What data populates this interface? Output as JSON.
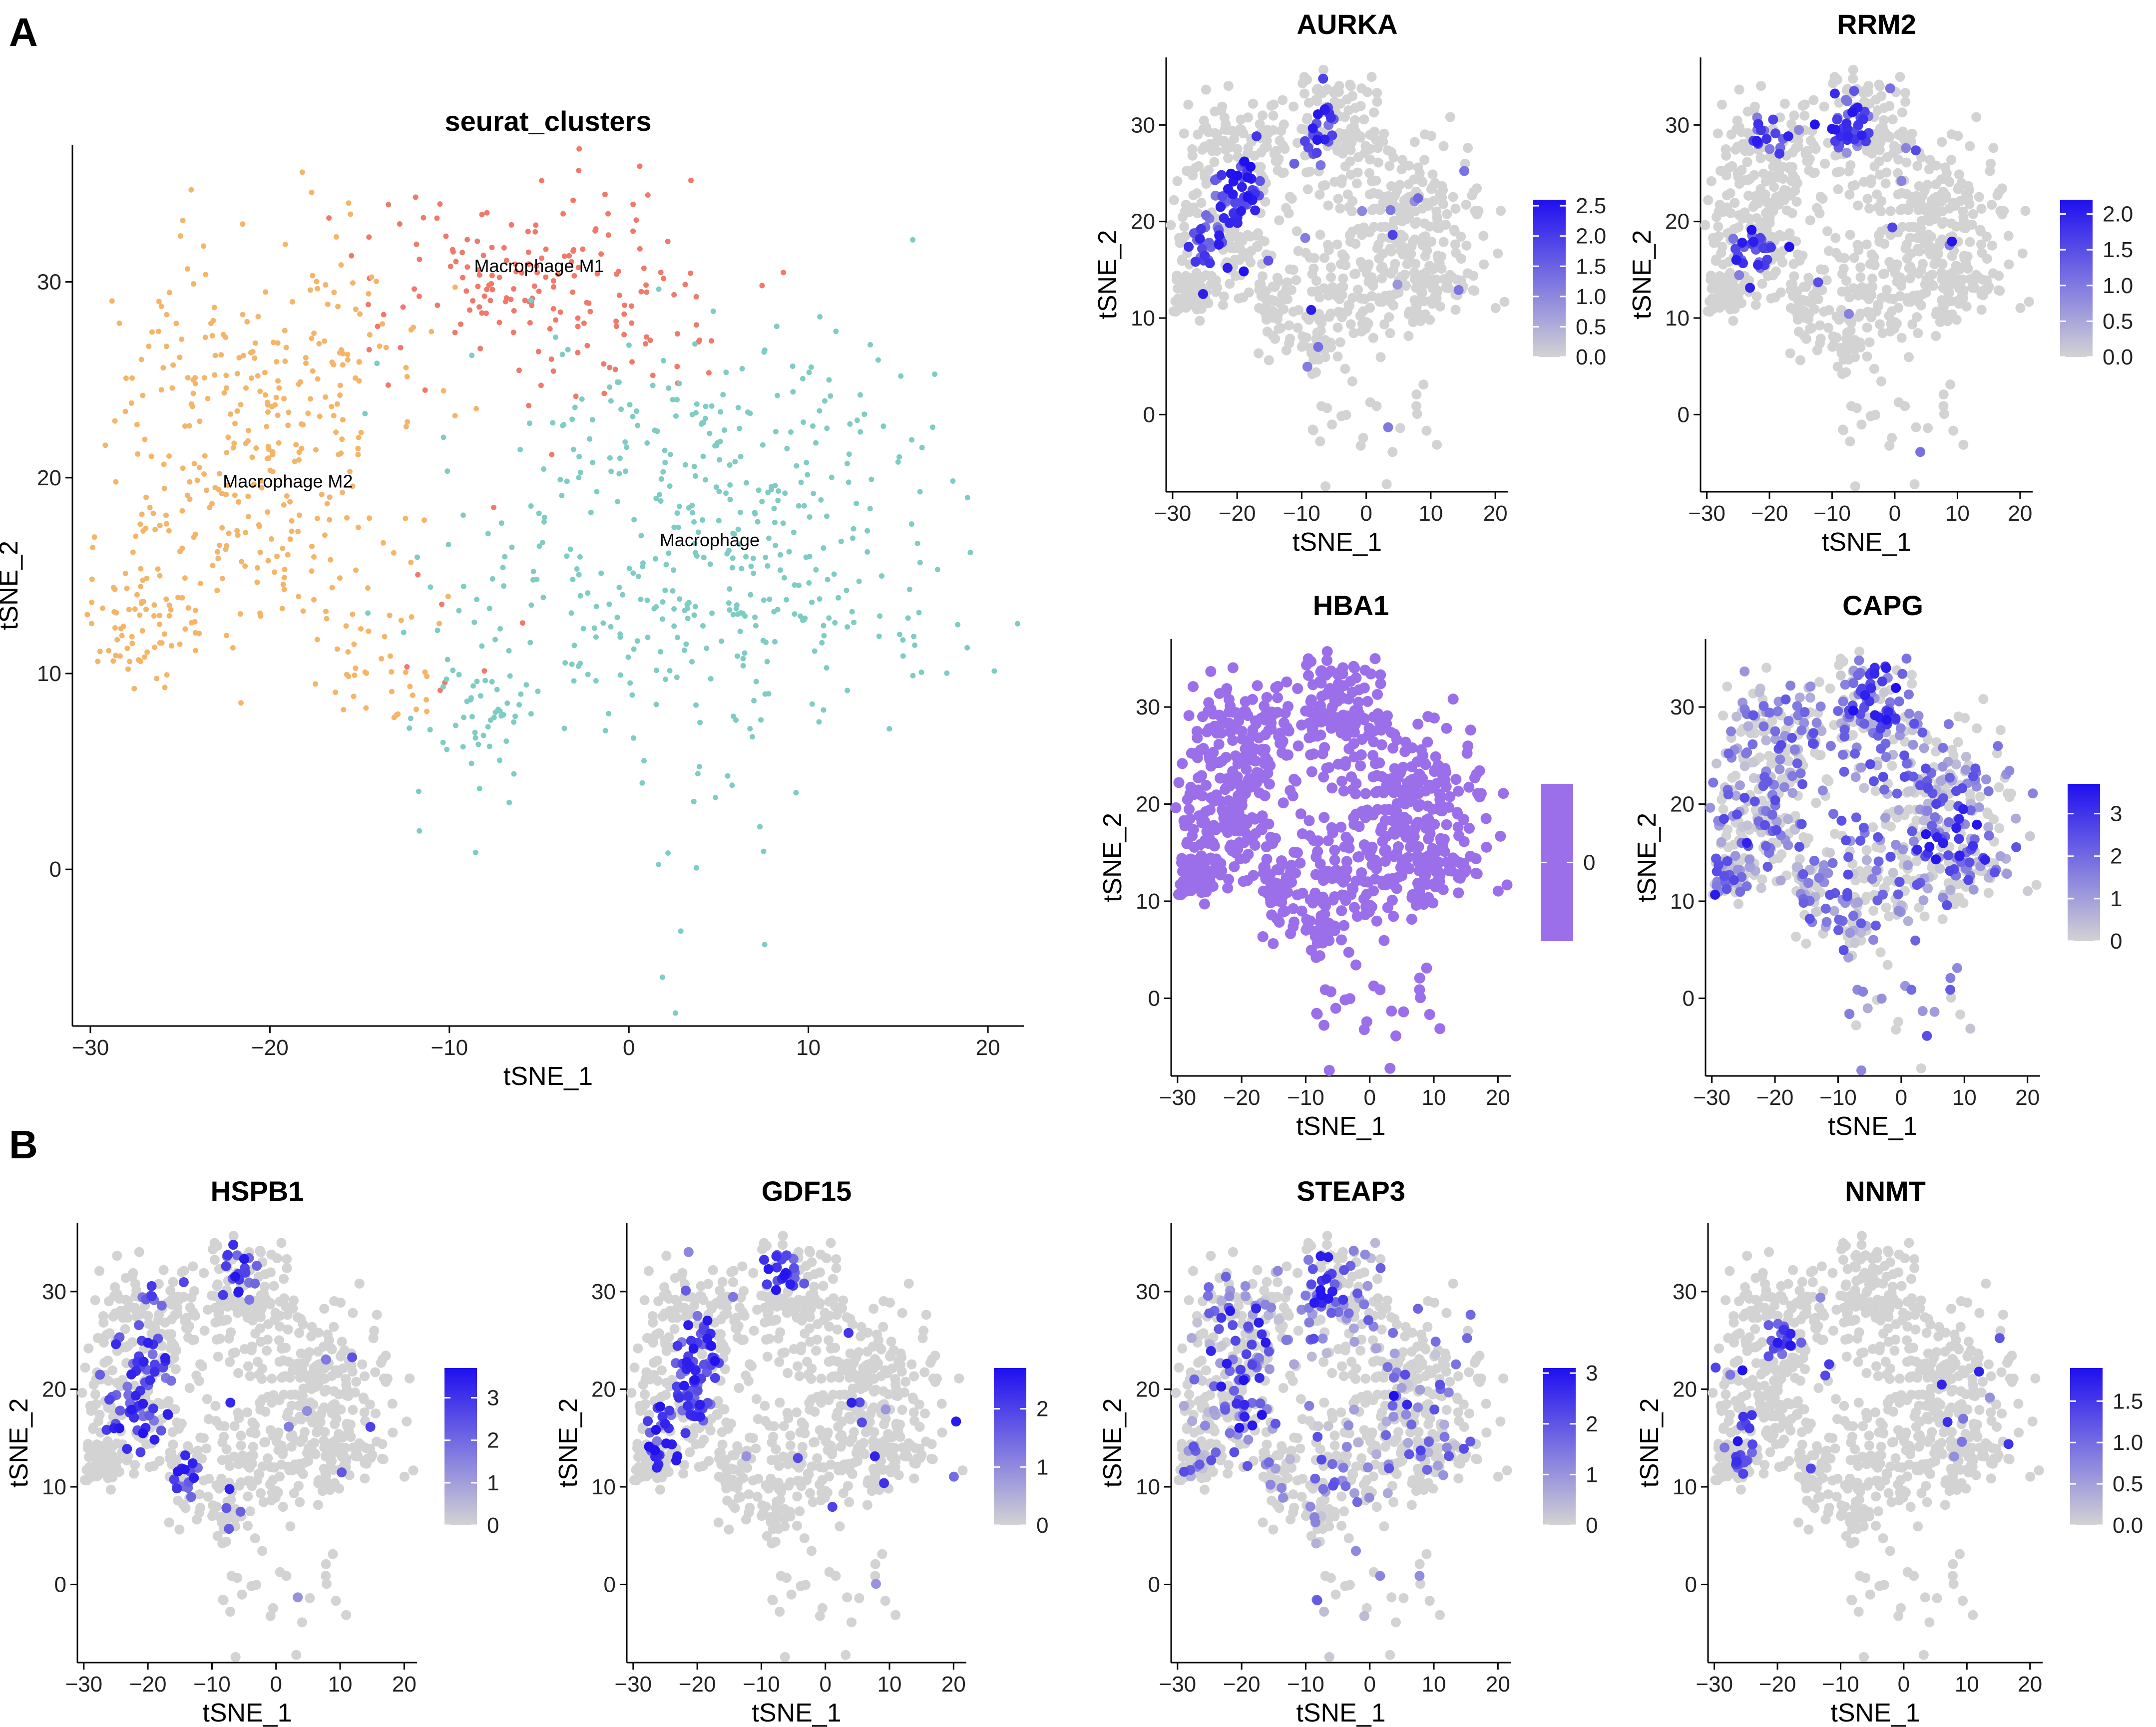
{
  "panel_labels": [
    "A",
    "B"
  ],
  "chart_data": [
    {
      "type": "scatter",
      "title": "seurat_clusters",
      "xlabel": "tSNE_1",
      "ylabel": "tSNE_2",
      "xlim": [
        -31,
        22
      ],
      "ylim": [
        -8,
        37
      ],
      "xticks": [
        -30,
        -20,
        -10,
        0,
        10,
        20
      ],
      "yticks": [
        0,
        10,
        20,
        30
      ],
      "clusters": [
        {
          "name": "Macrophage M1",
          "color": "#F0796B",
          "label_x": -5,
          "label_y": 30.5,
          "centers": [
            [
              -5,
              30,
              4.5,
              2.8,
              160
            ],
            [
              1.5,
              28,
              2,
              2,
              20
            ],
            [
              -10,
              12,
              3,
              3,
              8
            ]
          ]
        },
        {
          "name": "Macrophage M2",
          "color": "#F5B569",
          "label_x": -19,
          "label_y": 19.5,
          "centers": [
            [
              -20,
              26,
              4,
              3.5,
              190
            ],
            [
              -22,
              18,
              4,
              3,
              150
            ],
            [
              -27,
              12.5,
              1.6,
              1.3,
              70
            ],
            [
              -14,
              11,
              1.6,
              2,
              40
            ]
          ]
        },
        {
          "name": "Macrophage",
          "color": "#7ECCC4",
          "label_x": 4.5,
          "label_y": 16.5,
          "centers": [
            [
              5,
              22,
              6,
              3,
              180
            ],
            [
              8,
              14,
              6,
              3,
              180
            ],
            [
              -4,
              12,
              5,
              4,
              110
            ],
            [
              -8,
              8,
              1.2,
              1.5,
              30
            ],
            [
              4,
              0,
              3,
              3,
              16
            ]
          ]
        }
      ]
    },
    {
      "type": "scatter",
      "title": "AURKA",
      "xlabel": "tSNE_1",
      "ylabel": "tSNE_2",
      "xlim": [
        -31,
        22
      ],
      "ylim": [
        -8,
        37
      ],
      "xticks": [
        -30,
        -20,
        -10,
        0,
        10,
        20
      ],
      "yticks": [
        0,
        10,
        20,
        30
      ],
      "legend_ticks": [
        0.0,
        0.5,
        1.0,
        1.5,
        2.0,
        2.5
      ],
      "legend_labels": [
        "0.0",
        "0.5",
        "1.0",
        "1.5",
        "2.0",
        "2.5"
      ],
      "legend_max": 2.6,
      "low_color": "#D3D3D3",
      "high_color": "#1F0FEF",
      "hotspots": [
        [
          -20,
          23,
          3.5,
          3,
          0.9
        ],
        [
          -25,
          18,
          2.5,
          2.5,
          0.95
        ],
        [
          -7,
          29,
          2,
          3,
          0.6
        ]
      ]
    },
    {
      "type": "scatter",
      "title": "RRM2",
      "xlabel": "tSNE_1",
      "ylabel": "tSNE_2",
      "xlim": [
        -31,
        22
      ],
      "ylim": [
        -8,
        37
      ],
      "xticks": [
        -30,
        -20,
        -10,
        0,
        10,
        20
      ],
      "yticks": [
        0,
        10,
        20,
        30
      ],
      "legend_ticks": [
        0.0,
        0.5,
        1.0,
        1.5,
        2.0
      ],
      "legend_labels": [
        "0.0",
        "0.5",
        "1.0",
        "1.5",
        "2.0"
      ],
      "legend_max": 2.2,
      "low_color": "#D3D3D3",
      "high_color": "#1F0FEF",
      "hotspots": [
        [
          -23,
          17,
          3,
          2,
          0.7
        ],
        [
          -20,
          29,
          3,
          2,
          0.6
        ],
        [
          -7,
          30,
          3,
          3,
          0.7
        ]
      ]
    },
    {
      "type": "scatter",
      "title": "HBA1",
      "xlabel": "tSNE_1",
      "ylabel": "tSNE_2",
      "xlim": [
        -31,
        22
      ],
      "ylim": [
        -8,
        37
      ],
      "xticks": [
        -30,
        -20,
        -10,
        0,
        10,
        20
      ],
      "yticks": [
        0,
        10,
        20,
        30
      ],
      "legend_ticks": [
        0
      ],
      "legend_labels": [
        "0"
      ],
      "legend_max": 0,
      "low_color": "#9C6FEA",
      "high_color": "#9C6FEA",
      "uniform": true,
      "hotspots": []
    },
    {
      "type": "scatter",
      "title": "CAPG",
      "xlabel": "tSNE_1",
      "ylabel": "tSNE_2",
      "xlim": [
        -31,
        22
      ],
      "ylim": [
        -8,
        37
      ],
      "xticks": [
        -30,
        -20,
        -10,
        0,
        10,
        20
      ],
      "yticks": [
        0,
        10,
        20,
        30
      ],
      "legend_ticks": [
        0,
        1,
        2,
        3
      ],
      "legend_labels": [
        "0",
        "1",
        "2",
        "3"
      ],
      "legend_max": 3.7,
      "low_color": "#D3D3D3",
      "high_color": "#1F0FEF",
      "diffuse": 0.55,
      "hotspots": [
        [
          -4,
          31,
          4,
          3,
          0.7
        ],
        [
          8,
          16,
          5,
          5,
          0.4
        ]
      ]
    },
    {
      "type": "scatter",
      "title": "HSPB1",
      "xlabel": "tSNE_1",
      "ylabel": "tSNE_2",
      "xlim": [
        -31,
        22
      ],
      "ylim": [
        -8,
        37
      ],
      "xticks": [
        -30,
        -20,
        -10,
        0,
        10,
        20
      ],
      "yticks": [
        0,
        10,
        20,
        30
      ],
      "legend_ticks": [
        0,
        1,
        2,
        3
      ],
      "legend_labels": [
        "0",
        "1",
        "2",
        "3"
      ],
      "legend_max": 3.7,
      "low_color": "#D3D3D3",
      "high_color": "#1F0FEF",
      "hotspots": [
        [
          -19,
          29.5,
          1.8,
          1,
          0.95
        ],
        [
          -14,
          11,
          2,
          2,
          0.85
        ],
        [
          -22,
          20,
          5,
          6,
          0.45
        ],
        [
          -6,
          32,
          3,
          3,
          0.4
        ]
      ]
    },
    {
      "type": "scatter",
      "title": "GDF15",
      "xlabel": "tSNE_1",
      "ylabel": "tSNE_2",
      "xlim": [
        -31,
        22
      ],
      "ylim": [
        -8,
        37
      ],
      "xticks": [
        -30,
        -20,
        -10,
        0,
        10,
        20
      ],
      "yticks": [
        0,
        10,
        20,
        30
      ],
      "legend_ticks": [
        0,
        1,
        2
      ],
      "legend_labels": [
        "0",
        "1",
        "2"
      ],
      "legend_max": 2.7,
      "low_color": "#D3D3D3",
      "high_color": "#1F0FEF",
      "hotspots": [
        [
          -20,
          22,
          3,
          5,
          0.9
        ],
        [
          -7,
          32,
          2.5,
          1.8,
          0.95
        ],
        [
          -25,
          15,
          3,
          3,
          0.5
        ]
      ]
    },
    {
      "type": "scatter",
      "title": "STEAP3",
      "xlabel": "tSNE_1",
      "ylabel": "tSNE_2",
      "xlim": [
        -31,
        22
      ],
      "ylim": [
        -8,
        37
      ],
      "xticks": [
        -30,
        -20,
        -10,
        0,
        10,
        20
      ],
      "yticks": [
        0,
        10,
        20,
        30
      ],
      "legend_ticks": [
        0,
        1,
        2,
        3
      ],
      "legend_labels": [
        "0",
        "1",
        "2",
        "3"
      ],
      "legend_max": 3.1,
      "low_color": "#D3D3D3",
      "high_color": "#1F0FEF",
      "diffuse": 0.25,
      "hotspots": [
        [
          -7,
          31,
          3,
          3,
          0.45
        ],
        [
          -20,
          22,
          5,
          6,
          0.3
        ]
      ]
    },
    {
      "type": "scatter",
      "title": "NNMT",
      "xlabel": "tSNE_1",
      "ylabel": "tSNE_2",
      "xlim": [
        -31,
        22
      ],
      "ylim": [
        -8,
        37
      ],
      "xticks": [
        -30,
        -20,
        -10,
        0,
        10,
        20
      ],
      "yticks": [
        0,
        10,
        20,
        30
      ],
      "legend_ticks": [
        0.0,
        0.5,
        1.0,
        1.5
      ],
      "legend_labels": [
        "0.0",
        "0.5",
        "1.0",
        "1.5"
      ],
      "legend_max": 1.9,
      "low_color": "#D3D3D3",
      "high_color": "#1F0FEF",
      "hotspots": [
        [
          -20,
          25,
          2.5,
          1.8,
          0.85
        ],
        [
          -25,
          14,
          1.5,
          4,
          0.55
        ],
        [
          -12,
          21,
          1,
          1.5,
          0.7
        ]
      ]
    }
  ]
}
